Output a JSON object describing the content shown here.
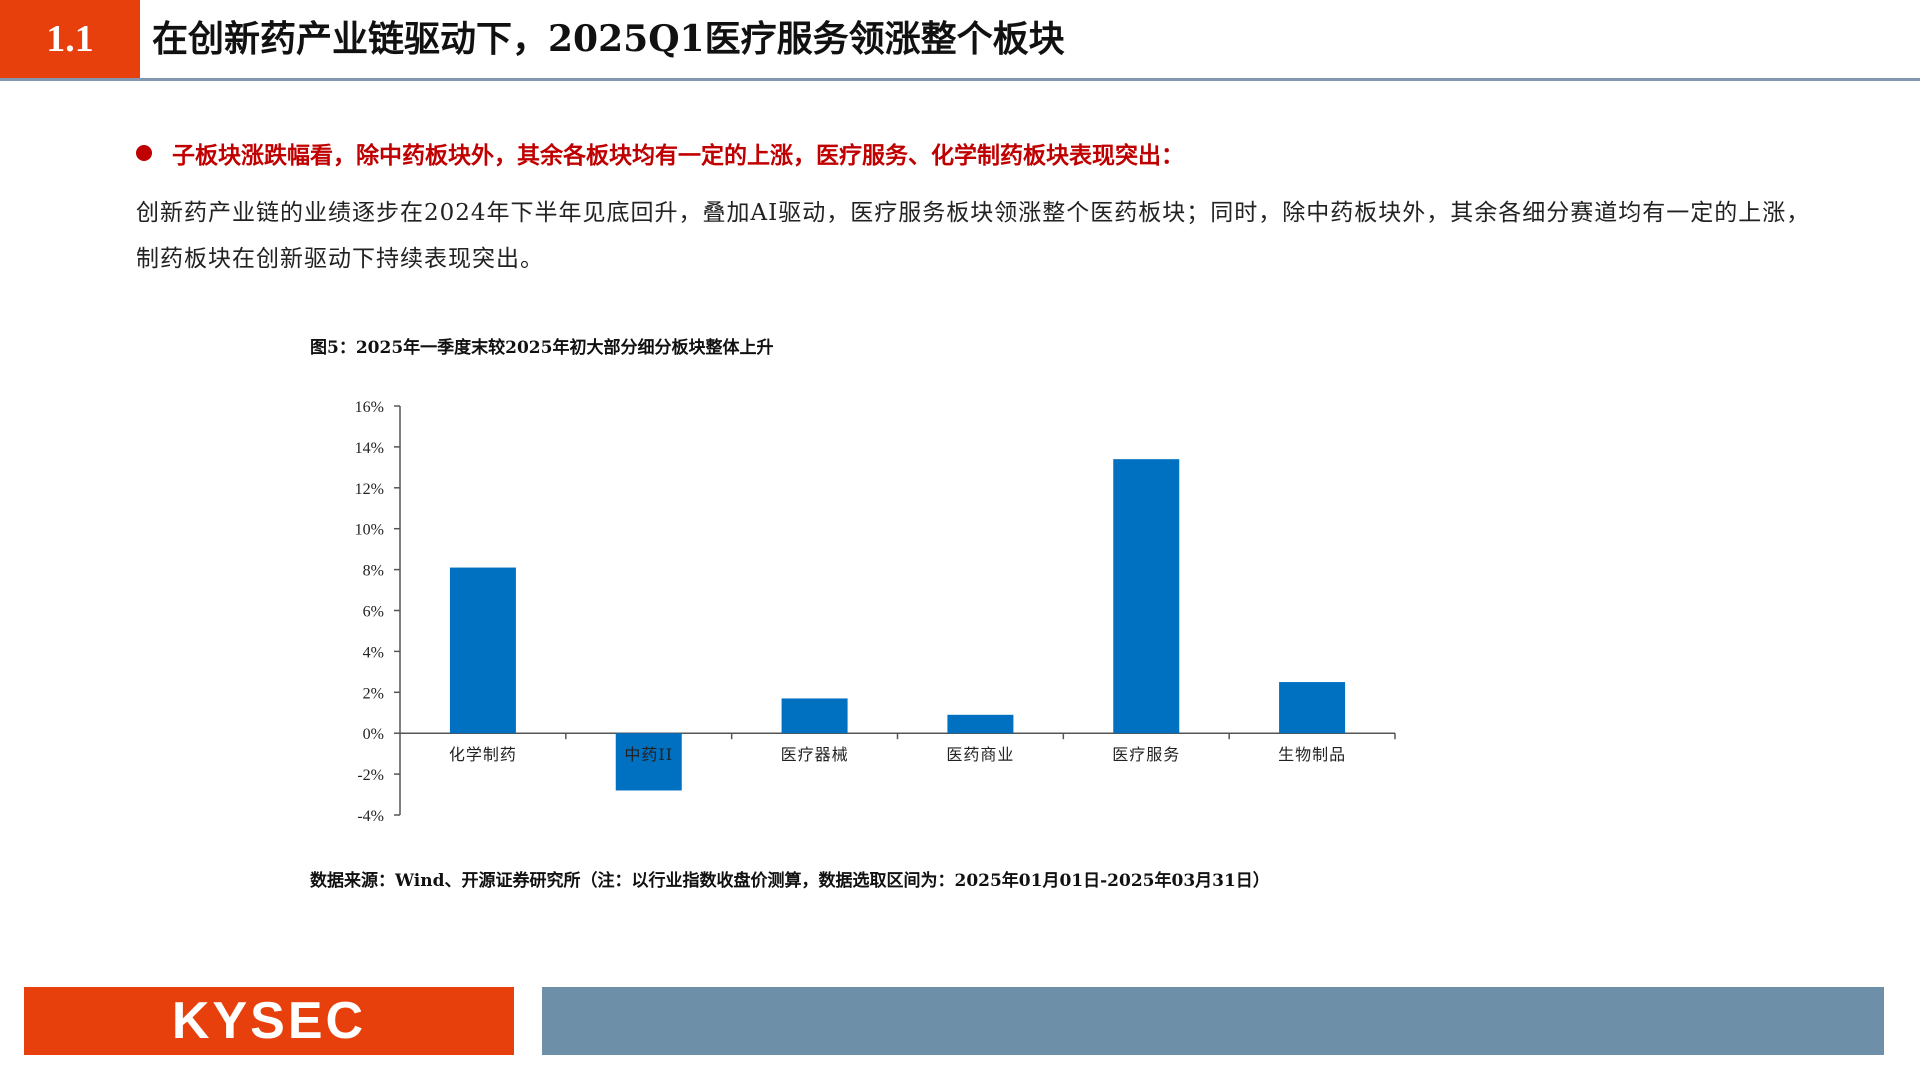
{
  "header": {
    "section_number": "1.1",
    "title": "在创新药产业链驱动下，2025Q1医疗服务领涨整个板块"
  },
  "bullet": {
    "text": "子板块涨跌幅看，除中药板块外，其余各板块均有一定的上涨，医疗服务、化学制药板块表现突出："
  },
  "body": {
    "paragraph": "创新药产业链的业绩逐步在2024年下半年见底回升，叠加AI驱动，医疗服务板块领涨整个医药板块；同时，除中药板块外，其余各细分赛道均有一定的上涨，制药板块在创新驱动下持续表现突出。"
  },
  "figure": {
    "caption": "图5：2025年一季度末较2025年初大部分细分板块整体上升",
    "source": "数据来源：Wind、开源证券研究所（注：以行业指数收盘价测算，数据选取区间为：2025年01月01日-2025年03月31日）"
  },
  "footer": {
    "logo_text": "KYSEC"
  },
  "colors": {
    "accent": "#E8400C",
    "bar": "#0070C0",
    "rule": "#8497B0",
    "footer_bar": "#6D8FA8",
    "bullet_text": "#C00000"
  },
  "chart_data": {
    "type": "bar",
    "categories": [
      "化学制药",
      "中药II",
      "医疗器械",
      "医药商业",
      "医疗服务",
      "生物制品"
    ],
    "values": [
      8.1,
      -2.8,
      1.7,
      0.9,
      13.4,
      2.5
    ],
    "yticks": [
      "16%",
      "14%",
      "12%",
      "10%",
      "8%",
      "6%",
      "4%",
      "2%",
      "0%",
      "-2%",
      "-4%"
    ],
    "ylim": [
      -4,
      16
    ],
    "title": "",
    "xlabel": "",
    "ylabel": "",
    "grid": false,
    "legend": false
  }
}
